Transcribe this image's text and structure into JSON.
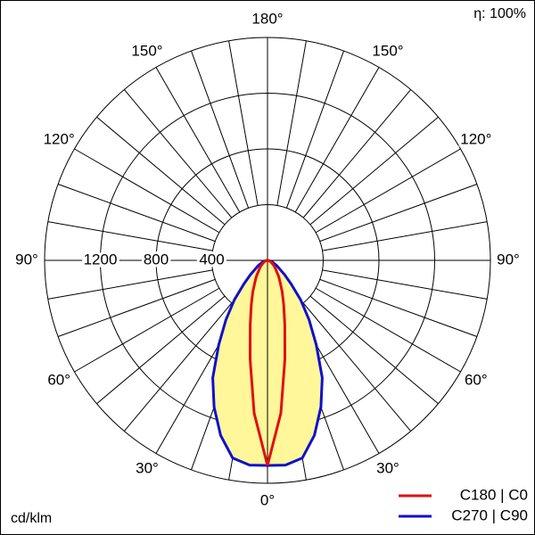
{
  "chart_data": {
    "type": "polar",
    "efficiency": "η: 100%",
    "unit": "cd/klm",
    "rlim": [
      0,
      1600
    ],
    "rticks": [
      400,
      800,
      1200
    ],
    "angle_ticks": [
      {
        "value": 0,
        "label": "0°"
      },
      {
        "value": 30,
        "label": "30°"
      },
      {
        "value": 60,
        "label": "60°"
      },
      {
        "value": 90,
        "label": "90°"
      },
      {
        "value": 120,
        "label": "120°"
      },
      {
        "value": 150,
        "label": "150°"
      },
      {
        "value": 180,
        "label": "180°"
      }
    ],
    "angles": [
      0,
      5,
      10,
      15,
      20,
      25,
      30,
      35,
      40,
      45,
      50,
      60,
      70,
      80,
      90
    ],
    "series": [
      {
        "name": "C270 | C90",
        "color": "#1010cc",
        "fill": "#fff799",
        "values": [
          1472,
          1475,
          1440,
          1300,
          1120,
          930,
          700,
          520,
          370,
          240,
          160,
          80,
          40,
          15,
          0
        ]
      },
      {
        "name": "C180 | C0",
        "color": "#e01010",
        "values": [
          1472,
          1100,
          720,
          480,
          340,
          250,
          180,
          140,
          100,
          80,
          60,
          35,
          20,
          8,
          0
        ]
      }
    ]
  }
}
